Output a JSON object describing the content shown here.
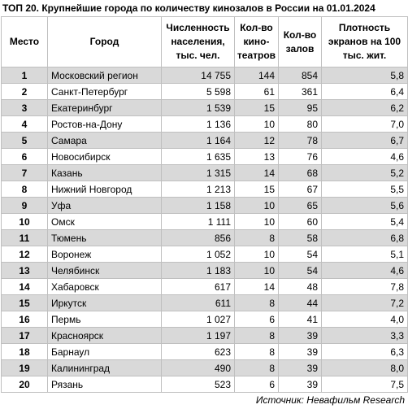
{
  "title": "ТОП 20. Крупнейшие города по количеству кинозалов в России на 01.01.2024",
  "table": {
    "header": [
      "Место",
      "Город",
      "Численность населения, тыс. чел.",
      "Кол-во кино-театров",
      "Кол-во залов",
      "Плотность экранов на 100 тыс. жит."
    ],
    "rows": [
      [
        "1",
        "Московский регион",
        "14 755",
        "144",
        "854",
        "5,8"
      ],
      [
        "2",
        "Санкт-Петербург",
        "5 598",
        "61",
        "361",
        "6,4"
      ],
      [
        "3",
        "Екатеринбург",
        "1 539",
        "15",
        "95",
        "6,2"
      ],
      [
        "4",
        "Ростов-на-Дону",
        "1 136",
        "10",
        "80",
        "7,0"
      ],
      [
        "5",
        "Самара",
        "1 164",
        "12",
        "78",
        "6,7"
      ],
      [
        "6",
        "Новосибирск",
        "1 635",
        "13",
        "76",
        "4,6"
      ],
      [
        "7",
        "Казань",
        "1 315",
        "14",
        "68",
        "5,2"
      ],
      [
        "8",
        "Нижний Новгород",
        "1 213",
        "15",
        "67",
        "5,5"
      ],
      [
        "9",
        "Уфа",
        "1 158",
        "10",
        "65",
        "5,6"
      ],
      [
        "10",
        "Омск",
        "1 111",
        "10",
        "60",
        "5,4"
      ],
      [
        "11",
        "Тюмень",
        "856",
        "8",
        "58",
        "6,8"
      ],
      [
        "12",
        "Воронеж",
        "1 052",
        "10",
        "54",
        "5,1"
      ],
      [
        "13",
        "Челябинск",
        "1 183",
        "10",
        "54",
        "4,6"
      ],
      [
        "14",
        "Хабаровск",
        "617",
        "14",
        "48",
        "7,8"
      ],
      [
        "15",
        "Иркутск",
        "611",
        "8",
        "44",
        "7,2"
      ],
      [
        "16",
        "Пермь",
        "1 027",
        "6",
        "41",
        "4,0"
      ],
      [
        "17",
        "Красноярск",
        "1 197",
        "8",
        "39",
        "3,3"
      ],
      [
        "18",
        "Барнаул",
        "623",
        "8",
        "39",
        "6,3"
      ],
      [
        "19",
        "Калининград",
        "490",
        "8",
        "39",
        "8,0"
      ],
      [
        "20",
        "Рязань",
        "523",
        "6",
        "39",
        "7,5"
      ]
    ]
  },
  "source": "Источник: Невафильм Research"
}
